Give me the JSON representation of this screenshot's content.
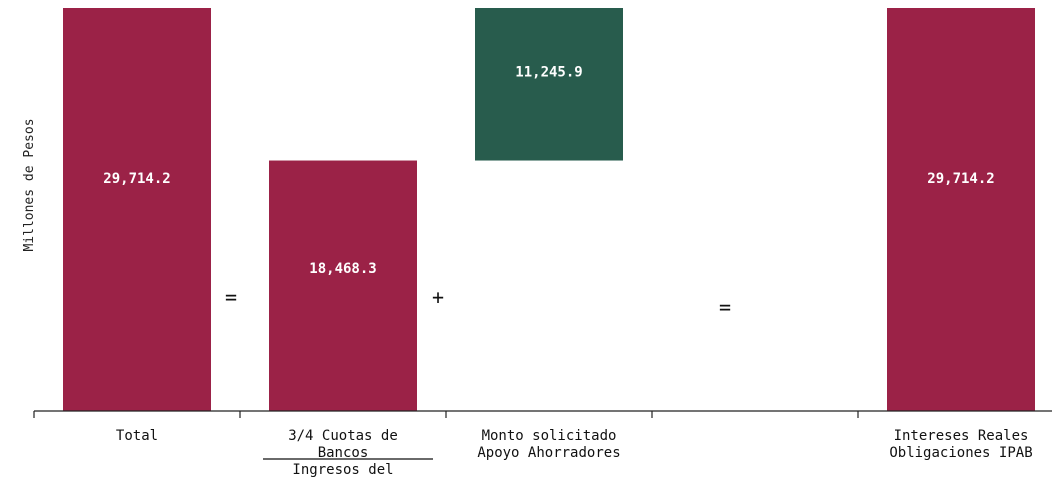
{
  "chart_data": {
    "type": "bar",
    "title": "",
    "ylabel": "Millones de Pesos",
    "xlabel": "",
    "ylim": [
      0,
      29714.2
    ],
    "grid": false,
    "bars": [
      {
        "label_lines": [
          "Total"
        ],
        "value": 29714.2,
        "base": 0,
        "value_label": "29,714.2",
        "color": "#9b2247"
      },
      {
        "label_lines": [
          "3/4 Cuotas de",
          "Bancos",
          "Ingresos del"
        ],
        "value": 18468.3,
        "base": 0,
        "value_label": "18,468.3",
        "color": "#9b2247"
      },
      {
        "label_lines": [
          "Monto solicitado",
          "Apoyo Ahorradores"
        ],
        "value": 11245.9,
        "base": 18468.3,
        "value_label": "11,245.9",
        "color": "#285c4d"
      },
      {
        "label_lines": [],
        "value": null,
        "base": null,
        "value_label": "",
        "color": ""
      },
      {
        "label_lines": [
          "Intereses Reales",
          "Obligaciones IPAB"
        ],
        "value": 29714.2,
        "base": 0,
        "value_label": "29,714.2",
        "color": "#9b2247"
      }
    ],
    "operators": [
      "=",
      "+",
      "="
    ]
  }
}
